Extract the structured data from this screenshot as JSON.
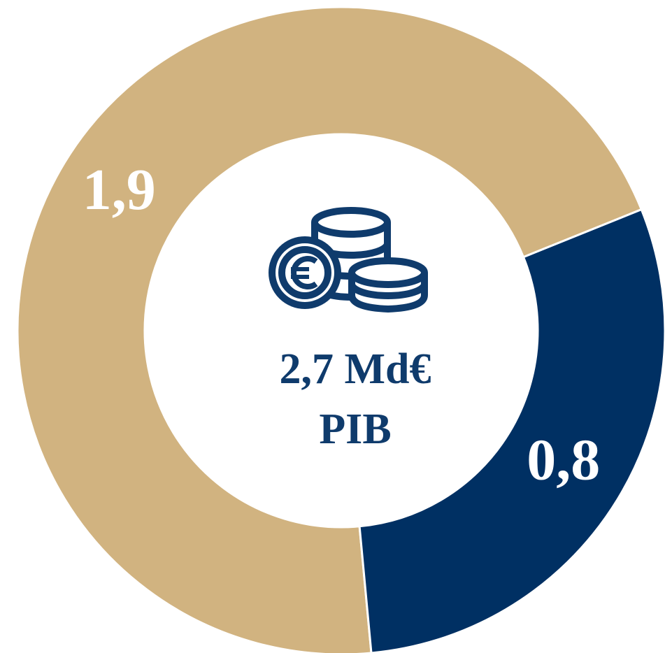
{
  "chart_data": {
    "type": "pie",
    "categories": [
      null,
      null
    ],
    "values": [
      1.9,
      0.8
    ],
    "value_labels": [
      "1,9",
      "0,8"
    ],
    "colors": [
      "#d1b380",
      "#003063"
    ],
    "annotations": [
      "2,7 Md€",
      "PIB"
    ]
  }
}
